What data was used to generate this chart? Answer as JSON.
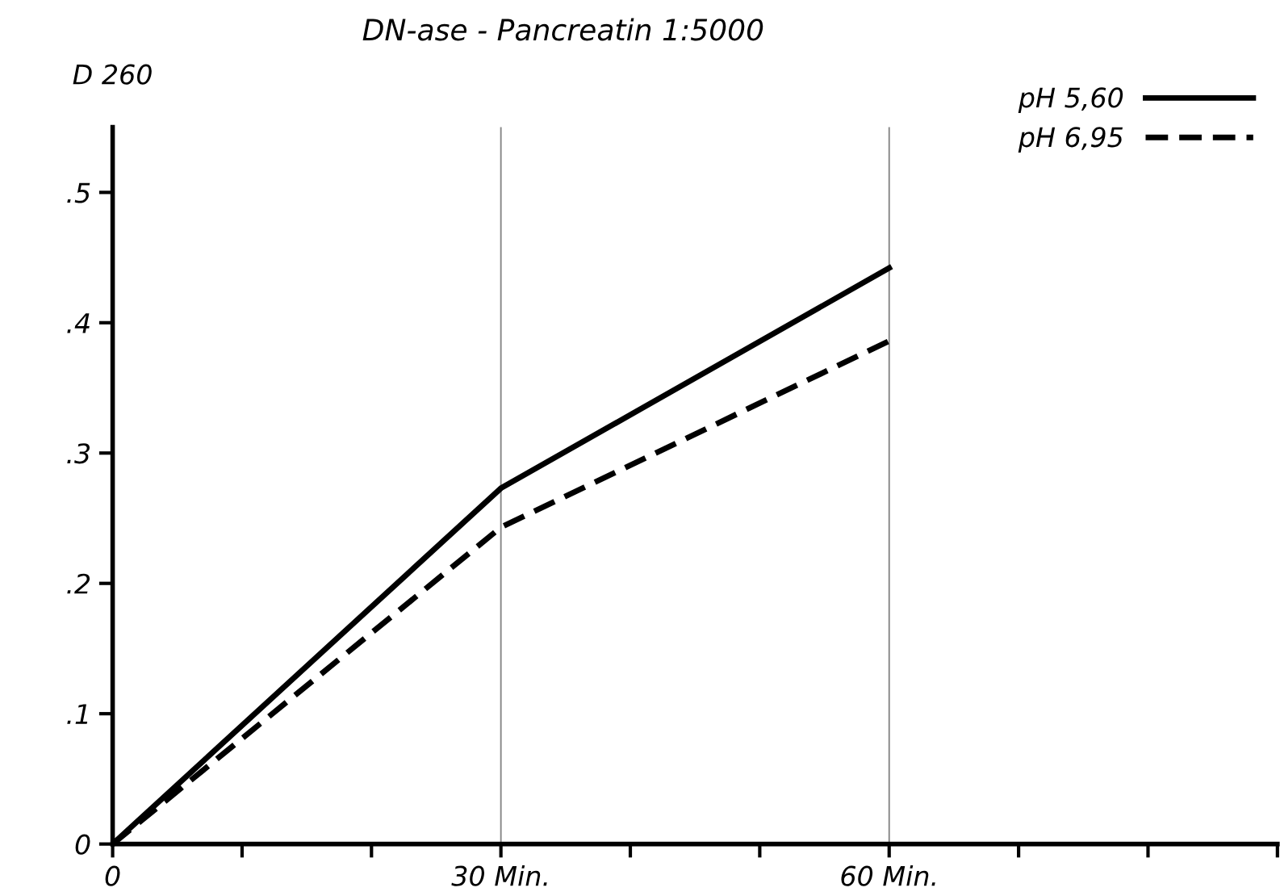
{
  "chart_data": {
    "type": "line",
    "title": "DN-ase - Pancreatin 1:5000",
    "ylabel": "D 260",
    "x": [
      0,
      30,
      60
    ],
    "series": [
      {
        "name": "pH 5,60",
        "color": "#000000",
        "values": [
          0,
          0.273,
          0.442
        ],
        "line_style": "solid"
      },
      {
        "name": "pH 6,95",
        "color": "#000000",
        "values": [
          0,
          0.243,
          0.386
        ],
        "line_style": "dashed"
      }
    ],
    "xlim": [
      0,
      90
    ],
    "ylim": [
      0,
      0.55
    ],
    "xticks": [
      0,
      {
        "value": 10,
        "label": null
      },
      {
        "value": 20,
        "label": null
      },
      {
        "value": 30,
        "label": "30 Min."
      },
      {
        "value": 40,
        "label": null
      },
      {
        "value": 50,
        "label": null
      },
      {
        "value": 60,
        "label": "60 Min."
      },
      {
        "value": 70,
        "label": null
      },
      {
        "value": 80,
        "label": null
      },
      {
        "value": 90,
        "label": null
      }
    ],
    "yticks": [
      0,
      {
        "value": 0.1,
        "label": ".1"
      },
      {
        "value": 0.2,
        "label": ".2"
      },
      {
        "value": 0.3,
        "label": ".3"
      },
      {
        "value": 0.4,
        "label": ".4"
      },
      {
        "value": 0.5,
        "label": ".5"
      }
    ],
    "ref_lines": [
      {
        "axis": "x",
        "value": 30,
        "color": "#888888"
      },
      {
        "axis": "x",
        "value": 60,
        "color": "#888888"
      }
    ],
    "legend": "top right",
    "grid": false
  }
}
